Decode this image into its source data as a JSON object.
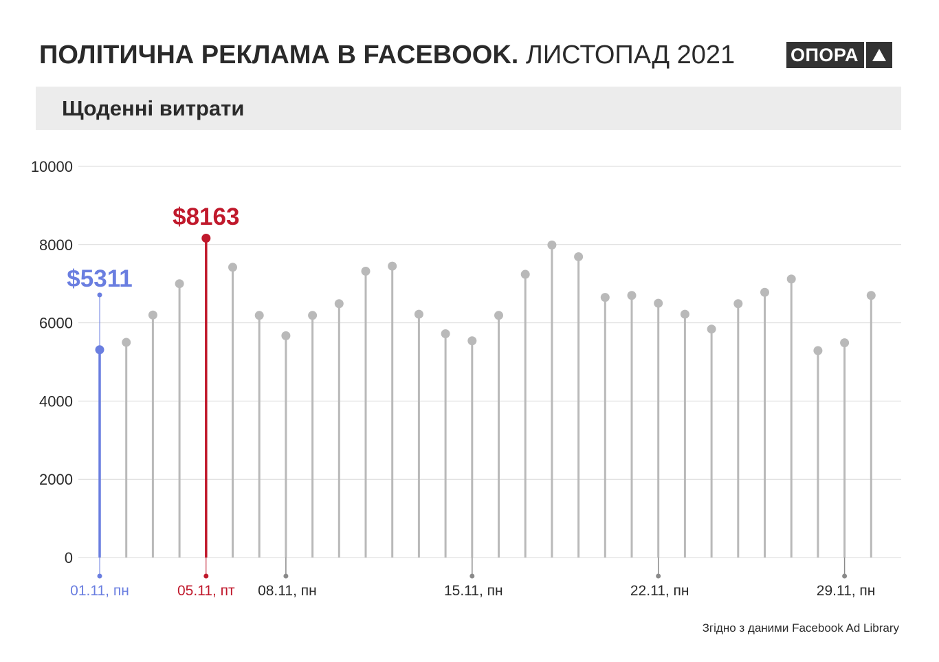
{
  "header": {
    "title_bold": "ПОЛІТИЧНА РЕКЛАМА В FACEBOOK.",
    "title_light": "ЛИСТОПАД 2021",
    "logo_text": "ОПОРА",
    "logo_icon": "triangle-up-icon"
  },
  "subtitle": "Щоденні витрати",
  "source": "Згідно з даними Facebook Ad Library",
  "colors": {
    "stem": "#b9b9b9",
    "point": "#b9b9b9",
    "first_highlight": "#6a7ee0",
    "max_highlight": "#c0192c",
    "grid": "#d9d9d9",
    "text": "#2a2a2a"
  },
  "chart_data": {
    "type": "lollipop",
    "x": [
      "01.11",
      "02.11",
      "03.11",
      "04.11",
      "05.11",
      "06.11",
      "07.11",
      "08.11",
      "09.11",
      "10.11",
      "11.11",
      "12.11",
      "13.11",
      "14.11",
      "15.11",
      "16.11",
      "17.11",
      "18.11",
      "19.11",
      "20.11",
      "21.11",
      "22.11",
      "23.11",
      "24.11",
      "25.11",
      "26.11",
      "27.11",
      "28.11",
      "29.11",
      "30.11"
    ],
    "values": [
      5311,
      5500,
      6200,
      7000,
      8163,
      7420,
      6190,
      5670,
      6190,
      6490,
      7320,
      7450,
      6220,
      5720,
      5540,
      6190,
      7240,
      7990,
      7690,
      6650,
      6700,
      6500,
      6220,
      5840,
      6490,
      6780,
      7120,
      5290,
      5490,
      6700
    ],
    "ylim": [
      0,
      10000
    ],
    "yticks": [
      0,
      2000,
      4000,
      6000,
      8000,
      10000
    ],
    "xtick_labels": [
      {
        "index": 0,
        "label": "01.11, пн",
        "style": "first"
      },
      {
        "index": 4,
        "label": "05.11, пт",
        "style": "max"
      },
      {
        "index": 7,
        "label": "08.11, пн",
        "style": "normal"
      },
      {
        "index": 14,
        "label": "15.11, пн",
        "style": "normal"
      },
      {
        "index": 21,
        "label": "22.11, пн",
        "style": "normal"
      },
      {
        "index": 28,
        "label": "29.11, пн",
        "style": "normal"
      }
    ],
    "annotations": [
      {
        "index": 0,
        "text": "$5311",
        "style": "first"
      },
      {
        "index": 4,
        "text": "$8163",
        "style": "max"
      }
    ],
    "grid": true,
    "legend": "none"
  }
}
